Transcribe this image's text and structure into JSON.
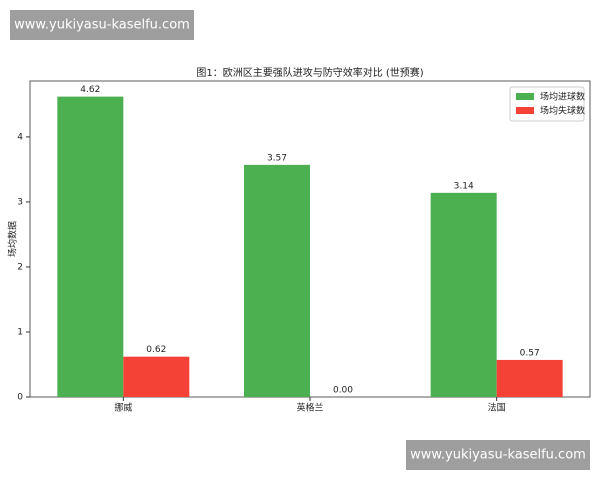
{
  "chart_data": {
    "type": "bar",
    "title": "图1：欧洲区主要强队进攻与防守效率对比 (世预赛)",
    "y_label": "场均数据",
    "categories": [
      "挪威",
      "英格兰",
      "法国"
    ],
    "series": [
      {
        "name": "场均进球数",
        "color": "#4caf50",
        "values": [
          4.62,
          3.57,
          3.14
        ],
        "value_labels": [
          "4.62",
          "3.57",
          "3.14"
        ]
      },
      {
        "name": "场均失球数",
        "color": "#f44336",
        "values": [
          0.62,
          0,
          0.57
        ],
        "value_labels": [
          "0.62",
          "0.00",
          "0.57"
        ]
      }
    ],
    "ylim": [
      0,
      4.86
    ],
    "yticks": [
      0,
      1,
      2,
      3,
      4
    ],
    "grid": false,
    "legend": "upper right"
  },
  "watermarks": [
    "www.yukiyasu-kaselfu.com",
    "www.yukiyasu-kaselfu.com"
  ]
}
